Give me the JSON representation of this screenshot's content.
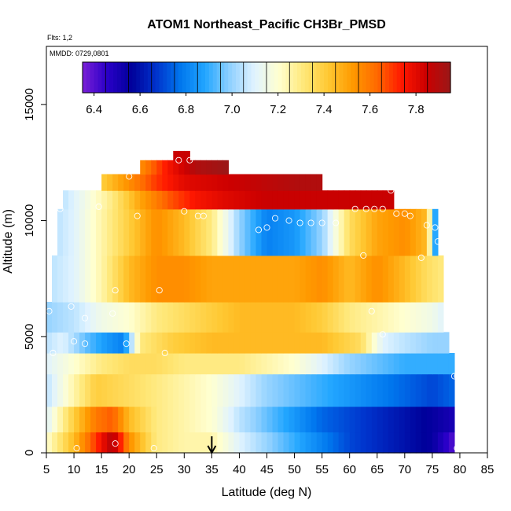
{
  "chart_data": {
    "type": "heatmap",
    "title": "ATOM1 Northeast_Pacific CH3Br_PMSD",
    "flights_label": "Flts: 1,2",
    "date_label": "MMDD: 0729,0801",
    "xlabel": "Latitude (deg N)",
    "ylabel": "Altitude (m)",
    "xlim": [
      5,
      85
    ],
    "ylim": [
      0,
      17500
    ],
    "x_ticks": [
      "5",
      "10",
      "15",
      "20",
      "25",
      "30",
      "35",
      "40",
      "45",
      "50",
      "55",
      "60",
      "65",
      "70",
      "75",
      "80",
      "85"
    ],
    "y_ticks": [
      "0",
      "5000",
      "10000",
      "15000"
    ],
    "colorbar": {
      "min": 6.35,
      "max": 7.95,
      "tick_labels": [
        "6.4",
        "6.6",
        "6.8",
        "7.0",
        "7.2",
        "7.4",
        "7.6",
        "7.8"
      ],
      "colors": [
        "#7a1fd6",
        "#2a00c8",
        "#00009a",
        "#0033cc",
        "#0077ee",
        "#22a6ff",
        "#8fd0ff",
        "#e0f3ff",
        "#ffffd0",
        "#ffe87a",
        "#ffc933",
        "#ff9a00",
        "#ff6a00",
        "#ff1800",
        "#cc0000",
        "#9a1818"
      ]
    },
    "grid": false,
    "legend": "colorbar-top",
    "marker_latitude": 35,
    "altitude_bands": [
      {
        "alt": [
          0,
          900
        ],
        "lat_range": [
          5,
          79
        ],
        "values": [
          [
            5,
            7.2
          ],
          [
            10,
            7.45
          ],
          [
            14,
            7.7
          ],
          [
            17,
            7.9
          ],
          [
            20,
            7.55
          ],
          [
            25,
            7.3
          ],
          [
            30,
            7.25
          ],
          [
            35,
            7.25
          ],
          [
            40,
            7.1
          ],
          [
            45,
            7.0
          ],
          [
            50,
            6.9
          ],
          [
            55,
            6.8
          ],
          [
            60,
            6.7
          ],
          [
            65,
            6.65
          ],
          [
            70,
            6.6
          ],
          [
            75,
            6.55
          ],
          [
            79,
            6.4
          ]
        ]
      },
      {
        "alt": [
          900,
          2000
        ],
        "lat_range": [
          5,
          79
        ],
        "values": [
          [
            5,
            7.1
          ],
          [
            10,
            7.4
          ],
          [
            14,
            7.6
          ],
          [
            17,
            7.65
          ],
          [
            20,
            7.45
          ],
          [
            25,
            7.3
          ],
          [
            30,
            7.25
          ],
          [
            35,
            7.2
          ],
          [
            40,
            7.05
          ],
          [
            45,
            6.95
          ],
          [
            50,
            6.85
          ],
          [
            55,
            6.75
          ],
          [
            60,
            6.7
          ],
          [
            65,
            6.65
          ],
          [
            70,
            6.6
          ],
          [
            75,
            6.55
          ],
          [
            79,
            6.5
          ]
        ]
      },
      {
        "alt": [
          2000,
          3400
        ],
        "lat_range": [
          5,
          79
        ],
        "values": [
          [
            5,
            7.05
          ],
          [
            10,
            7.25
          ],
          [
            14,
            7.4
          ],
          [
            20,
            7.35
          ],
          [
            25,
            7.3
          ],
          [
            30,
            7.25
          ],
          [
            35,
            7.2
          ],
          [
            40,
            7.1
          ],
          [
            45,
            7.0
          ],
          [
            50,
            6.95
          ],
          [
            55,
            6.9
          ],
          [
            60,
            6.85
          ],
          [
            65,
            6.8
          ],
          [
            70,
            6.75
          ],
          [
            75,
            6.7
          ],
          [
            79,
            6.75
          ]
        ]
      },
      {
        "alt": [
          3400,
          4300
        ],
        "lat_range": [
          5,
          79
        ],
        "values": [
          [
            5,
            7.1
          ],
          [
            10,
            7.2
          ],
          [
            15,
            7.3
          ],
          [
            20,
            7.35
          ],
          [
            25,
            7.35
          ],
          [
            30,
            7.3
          ],
          [
            35,
            7.3
          ],
          [
            40,
            7.3
          ],
          [
            45,
            7.25
          ],
          [
            50,
            7.2
          ],
          [
            55,
            7.1
          ],
          [
            60,
            7.0
          ],
          [
            65,
            6.95
          ],
          [
            70,
            6.9
          ],
          [
            75,
            6.9
          ],
          [
            79,
            6.9
          ]
        ]
      },
      {
        "alt": [
          4300,
          5200
        ],
        "lat_range": [
          5,
          78
        ],
        "values": [
          [
            5,
            7.05
          ],
          [
            8,
            7.1
          ],
          [
            12,
            6.95
          ],
          [
            16,
            6.85
          ],
          [
            19,
            6.8
          ],
          [
            22,
            7.3
          ],
          [
            28,
            7.4
          ],
          [
            35,
            7.45
          ],
          [
            45,
            7.45
          ],
          [
            55,
            7.45
          ],
          [
            62,
            7.35
          ],
          [
            66,
            7.1
          ],
          [
            70,
            7.05
          ],
          [
            75,
            7.0
          ],
          [
            78,
            7.0
          ]
        ]
      },
      {
        "alt": [
          5200,
          6500
        ],
        "lat_range": [
          5,
          77
        ],
        "values": [
          [
            5,
            7.0
          ],
          [
            10,
            7.05
          ],
          [
            15,
            7.15
          ],
          [
            20,
            7.2
          ],
          [
            25,
            7.3
          ],
          [
            30,
            7.35
          ],
          [
            35,
            7.4
          ],
          [
            40,
            7.45
          ],
          [
            50,
            7.45
          ],
          [
            55,
            7.4
          ],
          [
            60,
            7.3
          ],
          [
            65,
            7.25
          ],
          [
            70,
            7.2
          ],
          [
            75,
            7.15
          ],
          [
            77,
            7.1
          ]
        ]
      },
      {
        "alt": [
          6500,
          8500
        ],
        "lat_range": [
          6,
          77
        ],
        "values": [
          [
            6,
            7.05
          ],
          [
            10,
            7.1
          ],
          [
            15,
            7.25
          ],
          [
            20,
            7.45
          ],
          [
            25,
            7.55
          ],
          [
            30,
            7.55
          ],
          [
            35,
            7.5
          ],
          [
            40,
            7.5
          ],
          [
            45,
            7.5
          ],
          [
            50,
            7.5
          ],
          [
            55,
            7.55
          ],
          [
            60,
            7.45
          ],
          [
            65,
            7.55
          ],
          [
            70,
            7.45
          ],
          [
            74,
            7.35
          ],
          [
            77,
            7.3
          ]
        ]
      },
      {
        "alt": [
          8500,
          10500
        ],
        "lat_range": [
          7,
          76
        ],
        "values": [
          [
            7,
            7.05
          ],
          [
            10,
            7.1
          ],
          [
            15,
            7.25
          ],
          [
            20,
            7.4
          ],
          [
            25,
            7.55
          ],
          [
            30,
            7.45
          ],
          [
            35,
            7.3
          ],
          [
            40,
            7.0
          ],
          [
            45,
            6.8
          ],
          [
            50,
            6.85
          ],
          [
            55,
            7.0
          ],
          [
            60,
            7.35
          ],
          [
            65,
            7.5
          ],
          [
            70,
            7.55
          ],
          [
            74,
            7.45
          ],
          [
            76,
            6.7
          ]
        ]
      },
      {
        "alt": [
          10500,
          11300
        ],
        "lat_range": [
          8,
          68
        ],
        "values": [
          [
            8,
            7.05
          ],
          [
            12,
            7.15
          ],
          [
            17,
            7.3
          ],
          [
            22,
            7.5
          ],
          [
            27,
            7.65
          ],
          [
            32,
            7.75
          ],
          [
            37,
            7.8
          ],
          [
            45,
            7.85
          ],
          [
            55,
            7.85
          ],
          [
            62,
            7.85
          ],
          [
            68,
            7.85
          ]
        ]
      },
      {
        "alt": [
          11300,
          12000
        ],
        "lat_range": [
          15,
          55
        ],
        "values": [
          [
            15,
            7.4
          ],
          [
            20,
            7.55
          ],
          [
            25,
            7.7
          ],
          [
            30,
            7.8
          ],
          [
            40,
            7.85
          ],
          [
            50,
            7.9
          ],
          [
            55,
            7.9
          ]
        ]
      },
      {
        "alt": [
          12000,
          12600
        ],
        "lat_range": [
          22,
          38
        ],
        "values": [
          [
            22,
            7.55
          ],
          [
            27,
            7.75
          ],
          [
            32,
            7.9
          ],
          [
            38,
            7.95
          ]
        ]
      },
      {
        "alt": [
          12600,
          13000
        ],
        "lat_range": [
          28,
          31
        ],
        "values": [
          [
            28,
            7.85
          ],
          [
            31,
            7.85
          ]
        ]
      }
    ],
    "samples": [
      {
        "lat": 5.5,
        "alt": 6100
      },
      {
        "lat": 6.2,
        "alt": 4300
      },
      {
        "lat": 7.5,
        "alt": 10500
      },
      {
        "lat": 9.5,
        "alt": 6300
      },
      {
        "lat": 10.0,
        "alt": 4800
      },
      {
        "lat": 10.5,
        "alt": 200
      },
      {
        "lat": 12.0,
        "alt": 5800
      },
      {
        "lat": 12.0,
        "alt": 4700
      },
      {
        "lat": 14.5,
        "alt": 10600
      },
      {
        "lat": 17.5,
        "alt": 7000
      },
      {
        "lat": 17.0,
        "alt": 6000
      },
      {
        "lat": 17.5,
        "alt": 400
      },
      {
        "lat": 19.5,
        "alt": 4700
      },
      {
        "lat": 20.0,
        "alt": 11900
      },
      {
        "lat": 21.5,
        "alt": 10200
      },
      {
        "lat": 24.5,
        "alt": 200
      },
      {
        "lat": 25.5,
        "alt": 7000
      },
      {
        "lat": 26.5,
        "alt": 4300
      },
      {
        "lat": 29.0,
        "alt": 12600
      },
      {
        "lat": 30.0,
        "alt": 10400
      },
      {
        "lat": 31.0,
        "alt": 12600
      },
      {
        "lat": 32.5,
        "alt": 10200
      },
      {
        "lat": 33.5,
        "alt": 10200
      },
      {
        "lat": 43.5,
        "alt": 9600
      },
      {
        "lat": 45.0,
        "alt": 9700
      },
      {
        "lat": 46.5,
        "alt": 10100
      },
      {
        "lat": 49.0,
        "alt": 10000
      },
      {
        "lat": 51.0,
        "alt": 9900
      },
      {
        "lat": 53.0,
        "alt": 9900
      },
      {
        "lat": 55.0,
        "alt": 9900
      },
      {
        "lat": 57.5,
        "alt": 9900
      },
      {
        "lat": 61.0,
        "alt": 10500
      },
      {
        "lat": 62.5,
        "alt": 8500
      },
      {
        "lat": 63.0,
        "alt": 10500
      },
      {
        "lat": 64.5,
        "alt": 10500
      },
      {
        "lat": 64.0,
        "alt": 6100
      },
      {
        "lat": 66.0,
        "alt": 10500
      },
      {
        "lat": 66.0,
        "alt": 5100
      },
      {
        "lat": 67.5,
        "alt": 11300
      },
      {
        "lat": 68.5,
        "alt": 10300
      },
      {
        "lat": 70.0,
        "alt": 10300
      },
      {
        "lat": 71.0,
        "alt": 10200
      },
      {
        "lat": 73.0,
        "alt": 8400
      },
      {
        "lat": 74.0,
        "alt": 9800
      },
      {
        "lat": 75.5,
        "alt": 9700
      },
      {
        "lat": 76.0,
        "alt": 9100
      },
      {
        "lat": 79.0,
        "alt": 3300
      },
      {
        "lat": 79.5,
        "alt": 3300
      },
      {
        "lat": 79.5,
        "alt": 200
      }
    ]
  }
}
